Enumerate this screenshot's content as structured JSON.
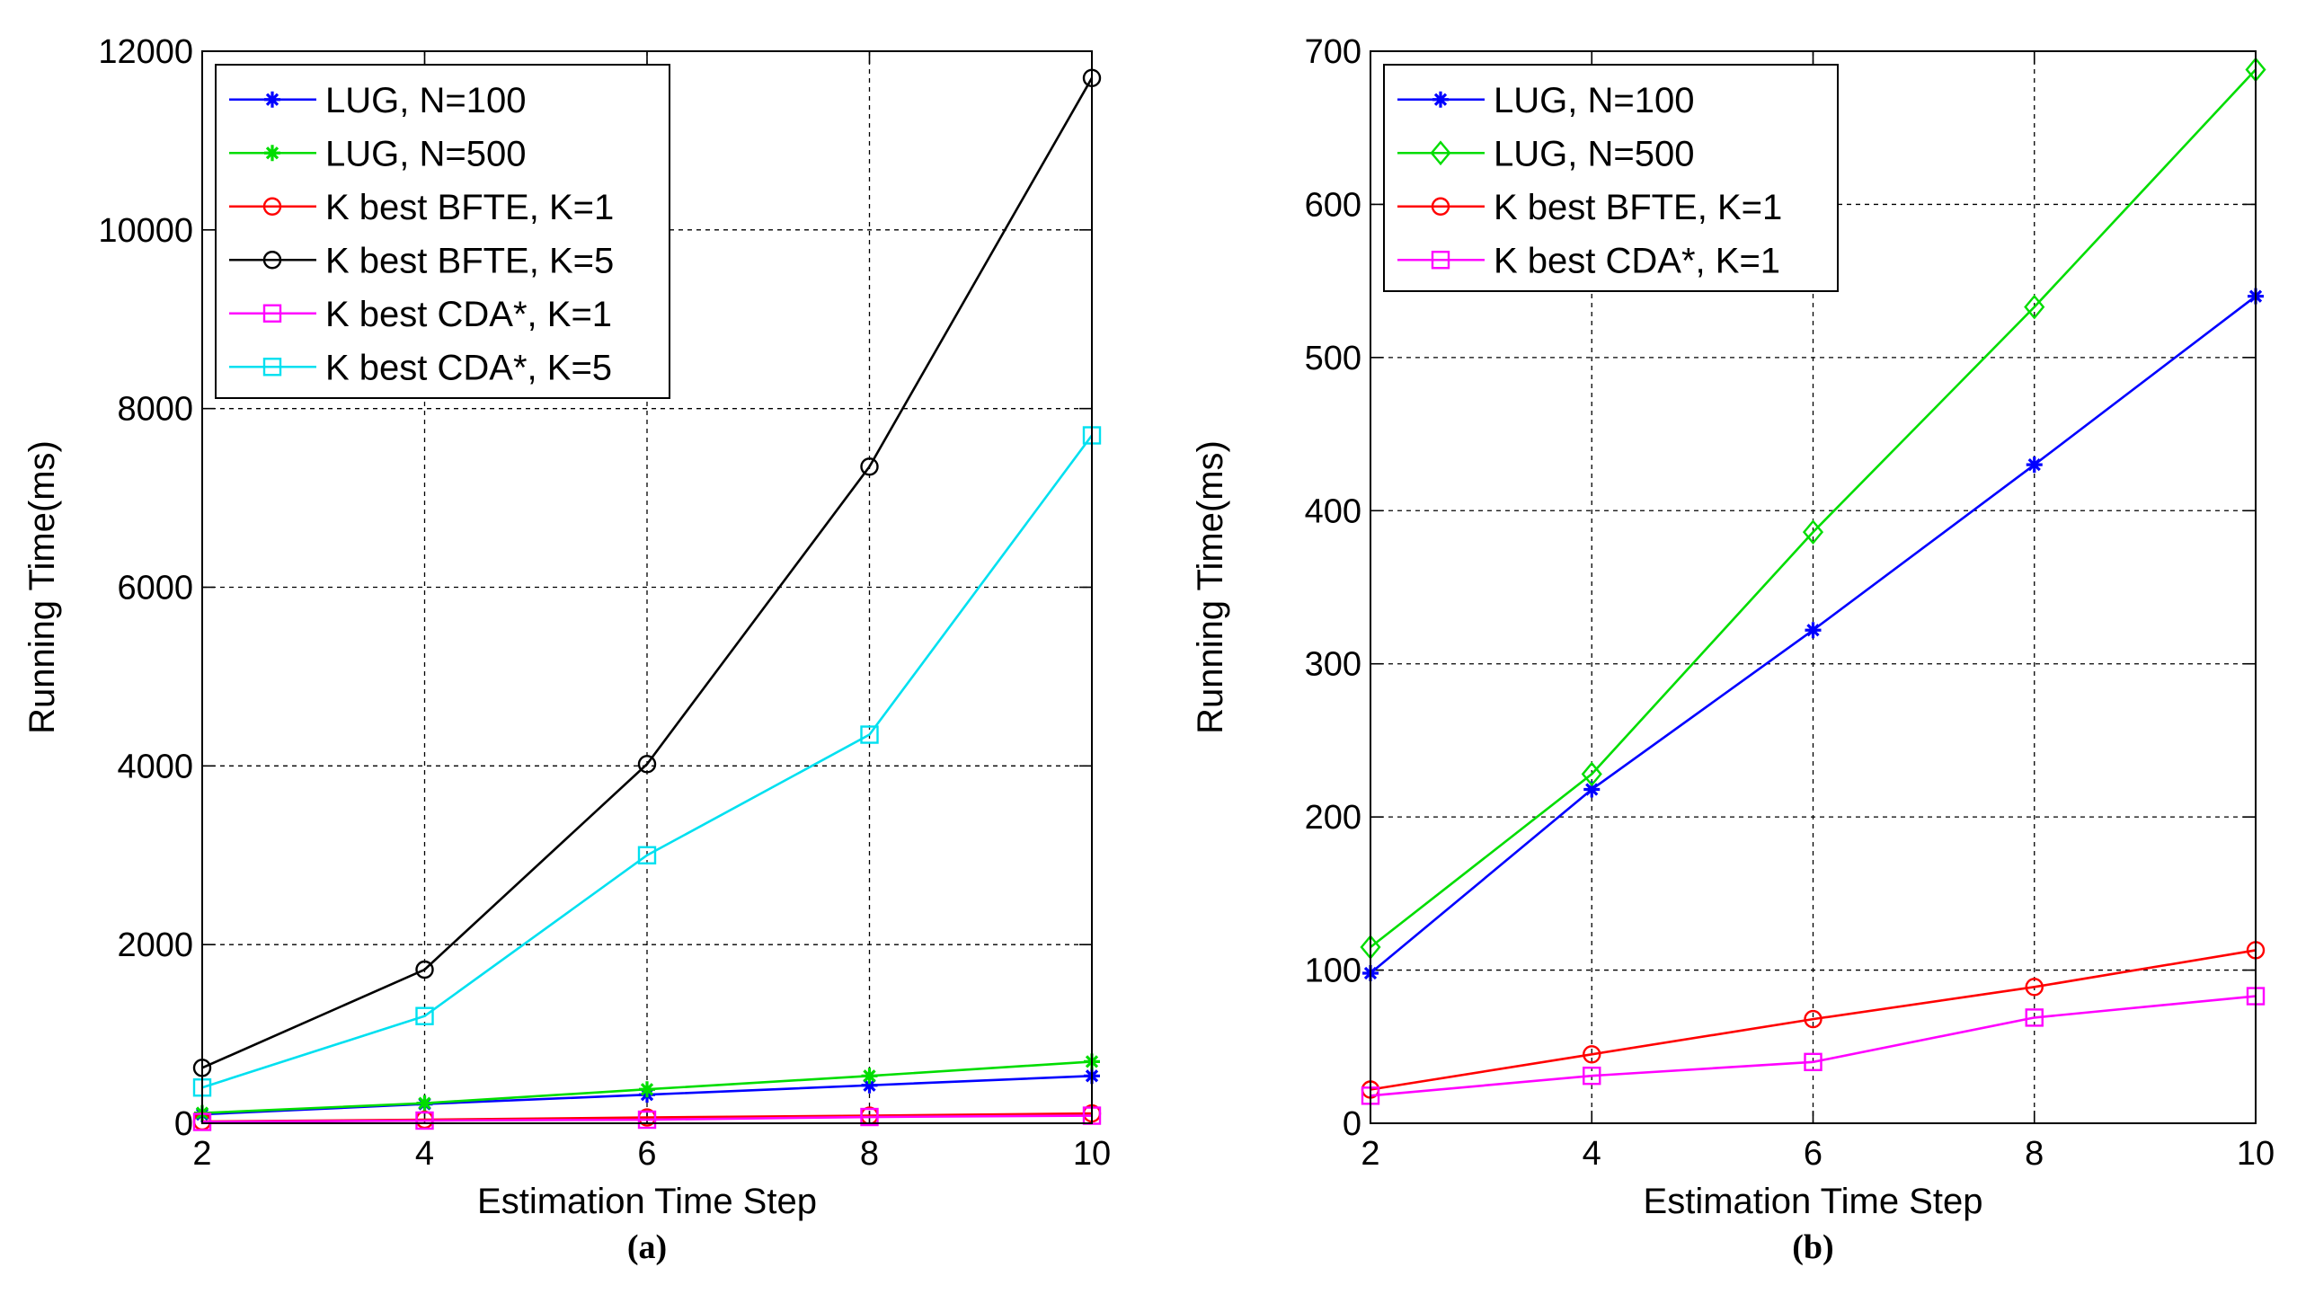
{
  "chart_data": [
    {
      "type": "line",
      "caption": "(a)",
      "xlabel": "Estimation Time Step",
      "ylabel": "Running Time(ms)",
      "xlim": [
        2,
        10
      ],
      "ylim": [
        0,
        12000
      ],
      "xticks": [
        2,
        4,
        6,
        8,
        10
      ],
      "yticks": [
        0,
        2000,
        4000,
        6000,
        8000,
        10000,
        12000
      ],
      "grid": true,
      "legend_position": "top-left",
      "x": [
        2,
        4,
        6,
        8,
        10
      ],
      "series": [
        {
          "name": "LUG, N=100",
          "color": "#0000ff",
          "marker": "star",
          "values": [
            100,
            215,
            320,
            425,
            530
          ]
        },
        {
          "name": "LUG, N=500",
          "color": "#00dd00",
          "marker": "star",
          "values": [
            115,
            225,
            380,
            530,
            690
          ]
        },
        {
          "name": "K best BFTE, K=1",
          "color": "#ff0000",
          "marker": "circle",
          "values": [
            20,
            40,
            65,
            85,
            110
          ]
        },
        {
          "name": "K best BFTE, K=5",
          "color": "#000000",
          "marker": "circle",
          "values": [
            620,
            1720,
            4020,
            7350,
            11700
          ]
        },
        {
          "name": "K best CDA*, K=1",
          "color": "#ff00ff",
          "marker": "square",
          "values": [
            15,
            30,
            40,
            70,
            85
          ]
        },
        {
          "name": "K best CDA*, K=5",
          "color": "#00e0f0",
          "marker": "square",
          "values": [
            400,
            1200,
            3000,
            4350,
            7700
          ]
        }
      ]
    },
    {
      "type": "line",
      "caption": "(b)",
      "xlabel": "Estimation Time Step",
      "ylabel": "Running Time(ms)",
      "xlim": [
        2,
        10
      ],
      "ylim": [
        0,
        700
      ],
      "xticks": [
        2,
        4,
        6,
        8,
        10
      ],
      "yticks": [
        0,
        100,
        200,
        300,
        400,
        500,
        600,
        700
      ],
      "grid": true,
      "legend_position": "top-left",
      "x": [
        2,
        4,
        6,
        8,
        10
      ],
      "series": [
        {
          "name": "LUG, N=100",
          "color": "#0000ff",
          "marker": "star",
          "values": [
            98,
            218,
            322,
            430,
            540
          ]
        },
        {
          "name": "LUG, N=500",
          "color": "#00dd00",
          "marker": "diamond",
          "values": [
            115,
            228,
            386,
            533,
            688
          ]
        },
        {
          "name": "K best BFTE, K=1",
          "color": "#ff0000",
          "marker": "circle",
          "values": [
            22,
            45,
            68,
            89,
            113
          ]
        },
        {
          "name": "K best CDA*, K=1",
          "color": "#ff00ff",
          "marker": "square",
          "values": [
            18,
            31,
            40,
            69,
            83
          ]
        }
      ]
    }
  ]
}
